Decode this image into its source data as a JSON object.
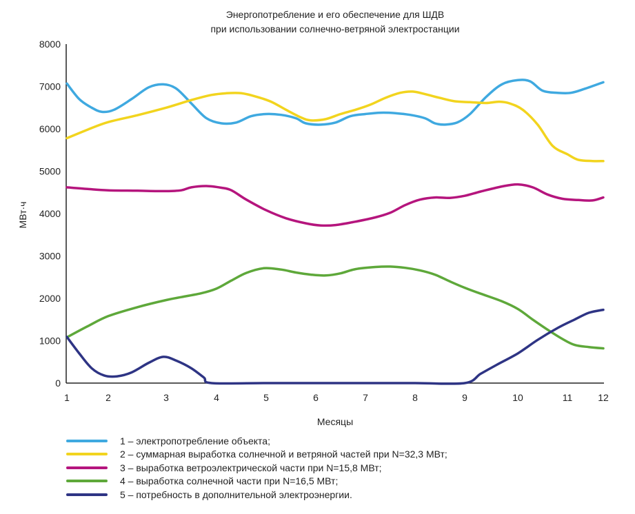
{
  "chart_data": {
    "type": "line",
    "title": [
      "Энергопотребление и его обеспечение для ШДВ",
      "при использовании солнечно-ветряной электростанции"
    ],
    "xlabel": "Месяцы",
    "ylabel": "МВт·ч",
    "xlim": [
      1,
      12
    ],
    "ylim": [
      0,
      8000
    ],
    "x_ticks": [
      1,
      2,
      3,
      4,
      5,
      6,
      7,
      8,
      9,
      10,
      11,
      12
    ],
    "y_ticks": [
      0,
      1000,
      2000,
      3000,
      4000,
      5000,
      6000,
      7000,
      8000
    ],
    "grid": false,
    "legend_position": "bottom",
    "series": [
      {
        "name": "1 – электропотребление объекта;",
        "color": "#3fa9e0",
        "points": [
          [
            1,
            7070
          ],
          [
            1.3,
            6700
          ],
          [
            1.6,
            6500
          ],
          [
            1.85,
            6400
          ],
          [
            2.1,
            6450
          ],
          [
            2.4,
            6700
          ],
          [
            2.7,
            6980
          ],
          [
            2.95,
            7050
          ],
          [
            3.2,
            6950
          ],
          [
            3.5,
            6600
          ],
          [
            3.8,
            6250
          ],
          [
            4.1,
            6130
          ],
          [
            4.4,
            6150
          ],
          [
            4.7,
            6300
          ],
          [
            5.0,
            6350
          ],
          [
            5.3,
            6330
          ],
          [
            5.6,
            6250
          ],
          [
            5.8,
            6130
          ],
          [
            6.1,
            6100
          ],
          [
            6.4,
            6150
          ],
          [
            6.7,
            6300
          ],
          [
            7.0,
            6350
          ],
          [
            7.3,
            6380
          ],
          [
            7.6,
            6370
          ],
          [
            7.9,
            6330
          ],
          [
            8.2,
            6250
          ],
          [
            8.4,
            6130
          ],
          [
            8.6,
            6100
          ],
          [
            8.85,
            6150
          ],
          [
            9.1,
            6350
          ],
          [
            9.4,
            6750
          ],
          [
            9.7,
            7050
          ],
          [
            10.0,
            7150
          ],
          [
            10.25,
            7120
          ],
          [
            10.5,
            6900
          ],
          [
            10.8,
            6850
          ],
          [
            11.1,
            6850
          ],
          [
            11.5,
            6950
          ],
          [
            12,
            7100
          ]
        ]
      },
      {
        "name": "2 – суммарная выработка солнечной и ветряной частей при N=32,3 МВт;",
        "color": "#f2d41e",
        "points": [
          [
            1,
            5780
          ],
          [
            1.5,
            5980
          ],
          [
            2.0,
            6160
          ],
          [
            2.5,
            6320
          ],
          [
            3.0,
            6500
          ],
          [
            3.5,
            6680
          ],
          [
            3.9,
            6800
          ],
          [
            4.2,
            6840
          ],
          [
            4.5,
            6840
          ],
          [
            4.8,
            6760
          ],
          [
            5.1,
            6640
          ],
          [
            5.4,
            6450
          ],
          [
            5.7,
            6270
          ],
          [
            5.9,
            6200
          ],
          [
            6.2,
            6230
          ],
          [
            6.5,
            6350
          ],
          [
            6.8,
            6450
          ],
          [
            7.1,
            6570
          ],
          [
            7.4,
            6730
          ],
          [
            7.7,
            6850
          ],
          [
            7.95,
            6880
          ],
          [
            8.2,
            6820
          ],
          [
            8.5,
            6730
          ],
          [
            8.8,
            6650
          ],
          [
            9.1,
            6630
          ],
          [
            9.4,
            6610
          ],
          [
            9.65,
            6640
          ],
          [
            9.85,
            6600
          ],
          [
            10.1,
            6450
          ],
          [
            10.4,
            6100
          ],
          [
            10.7,
            5600
          ],
          [
            11.0,
            5400
          ],
          [
            11.3,
            5270
          ],
          [
            11.7,
            5240
          ],
          [
            12,
            5240
          ]
        ]
      },
      {
        "name": "3 – выработка ветроэлектрической части при N=15,8 МВт;",
        "color": "#b5157d",
        "points": [
          [
            1,
            4620
          ],
          [
            1.5,
            4580
          ],
          [
            2.0,
            4550
          ],
          [
            2.5,
            4540
          ],
          [
            3.0,
            4530
          ],
          [
            3.3,
            4550
          ],
          [
            3.5,
            4620
          ],
          [
            3.8,
            4650
          ],
          [
            4.1,
            4610
          ],
          [
            4.3,
            4550
          ],
          [
            4.6,
            4330
          ],
          [
            5.0,
            4080
          ],
          [
            5.4,
            3890
          ],
          [
            5.8,
            3770
          ],
          [
            6.1,
            3720
          ],
          [
            6.4,
            3730
          ],
          [
            6.8,
            3810
          ],
          [
            7.2,
            3910
          ],
          [
            7.5,
            4020
          ],
          [
            7.8,
            4200
          ],
          [
            8.1,
            4330
          ],
          [
            8.4,
            4380
          ],
          [
            8.7,
            4370
          ],
          [
            9.0,
            4420
          ],
          [
            9.3,
            4520
          ],
          [
            9.7,
            4640
          ],
          [
            10.0,
            4690
          ],
          [
            10.3,
            4620
          ],
          [
            10.6,
            4450
          ],
          [
            10.9,
            4350
          ],
          [
            11.3,
            4320
          ],
          [
            11.7,
            4310
          ],
          [
            12,
            4380
          ]
        ]
      },
      {
        "name": "4 – выработка солнечной части при N=16,5 МВт;",
        "color": "#5ea83a",
        "points": [
          [
            1,
            1080
          ],
          [
            1.5,
            1340
          ],
          [
            2.0,
            1580
          ],
          [
            2.5,
            1790
          ],
          [
            3.0,
            1960
          ],
          [
            3.3,
            2030
          ],
          [
            3.7,
            2120
          ],
          [
            4.0,
            2230
          ],
          [
            4.3,
            2420
          ],
          [
            4.6,
            2600
          ],
          [
            4.95,
            2710
          ],
          [
            5.3,
            2680
          ],
          [
            5.6,
            2610
          ],
          [
            5.9,
            2560
          ],
          [
            6.2,
            2540
          ],
          [
            6.5,
            2590
          ],
          [
            6.8,
            2690
          ],
          [
            7.2,
            2740
          ],
          [
            7.5,
            2750
          ],
          [
            7.8,
            2720
          ],
          [
            8.1,
            2660
          ],
          [
            8.4,
            2560
          ],
          [
            8.7,
            2400
          ],
          [
            9.0,
            2250
          ],
          [
            9.3,
            2110
          ],
          [
            9.7,
            1930
          ],
          [
            10.0,
            1750
          ],
          [
            10.3,
            1500
          ],
          [
            10.6,
            1260
          ],
          [
            10.9,
            1040
          ],
          [
            11.2,
            900
          ],
          [
            11.6,
            850
          ],
          [
            12,
            820
          ]
        ]
      },
      {
        "name": "5 – потребность в дополнительной электроэнергии.",
        "color": "#2e3484",
        "points": [
          [
            1,
            1090
          ],
          [
            1.3,
            700
          ],
          [
            1.6,
            350
          ],
          [
            1.9,
            180
          ],
          [
            2.15,
            160
          ],
          [
            2.4,
            250
          ],
          [
            2.7,
            480
          ],
          [
            2.95,
            620
          ],
          [
            3.2,
            530
          ],
          [
            3.5,
            350
          ],
          [
            3.75,
            130
          ],
          [
            3.9,
            0
          ],
          [
            5,
            0
          ],
          [
            6,
            0
          ],
          [
            7,
            0
          ],
          [
            8,
            0
          ],
          [
            9,
            0
          ],
          [
            9.3,
            220
          ],
          [
            9.6,
            430
          ],
          [
            10.0,
            700
          ],
          [
            10.4,
            1020
          ],
          [
            10.8,
            1300
          ],
          [
            11.2,
            1500
          ],
          [
            11.6,
            1660
          ],
          [
            12,
            1730
          ]
        ]
      }
    ]
  }
}
